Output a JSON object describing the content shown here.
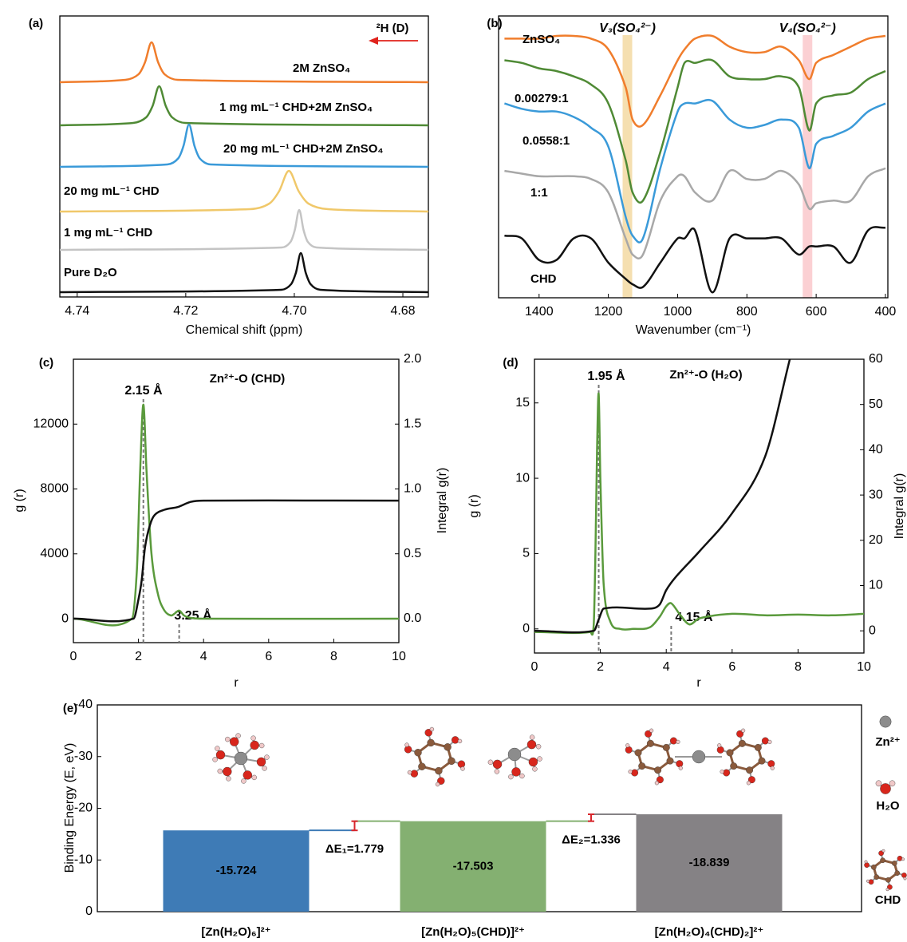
{
  "chart_data": [
    {
      "type": "line",
      "label": "(a)",
      "xlabel": "Chemical shift (ppm)",
      "xlim": [
        4.7432,
        4.6753
      ],
      "xticks": [
        4.74,
        4.72,
        {
          "value": 4.7,
          "label": "4.70"
        },
        4.68
      ],
      "annotation": "²H (D)",
      "annotation_color": "#e0231c",
      "series": [
        {
          "name": "2M ZnSO₄",
          "color": "#f07d2c",
          "x": [
            4.7432,
            4.7311,
            4.7287,
            4.7275,
            4.7263,
            4.7251,
            4.7239,
            4.7215,
            4.6753
          ],
          "values": [
            0,
            0.06,
            0.2,
            0.5,
            1.0,
            0.5,
            0.2,
            0.06,
            0
          ]
        },
        {
          "name": "1 mg mL⁻¹ CHD+2M ZnSO₄",
          "color": "#4f8a35",
          "x": [
            4.7432,
            4.7297,
            4.7273,
            4.7261,
            4.7249,
            4.7237,
            4.7225,
            4.7201,
            4.6753
          ],
          "values": [
            0,
            0.06,
            0.2,
            0.49,
            0.98,
            0.49,
            0.2,
            0.06,
            0
          ]
        },
        {
          "name": "20 mg mL⁻¹ CHD+2M ZnSO₄",
          "color": "#3a9ad9",
          "x": [
            4.7432,
            4.7234,
            4.7214,
            4.7204,
            4.7194,
            4.7184,
            4.7174,
            4.7154,
            4.6753
          ],
          "values": [
            0,
            0.06,
            0.21,
            0.53,
            1.06,
            0.53,
            0.21,
            0.06,
            0
          ]
        },
        {
          "name": "20 mg mL⁻¹ CHD",
          "color": "#f0c86a",
          "x": [
            4.7432,
            4.7082,
            4.7046,
            4.7028,
            4.701,
            4.6992,
            4.6974,
            4.6938,
            4.6753
          ],
          "values": [
            0,
            0.06,
            0.2,
            0.51,
            1.02,
            0.51,
            0.2,
            0.06,
            0
          ]
        },
        {
          "name": "1 mg mL⁻¹ CHD",
          "color": "#c4c4c4",
          "x": [
            4.7432,
            4.7023,
            4.7007,
            4.6999,
            4.6991,
            4.6983,
            4.6975,
            4.6959,
            4.6753
          ],
          "values": [
            0,
            0.06,
            0.2,
            0.5,
            1.0,
            0.5,
            0.2,
            0.06,
            0
          ]
        },
        {
          "name": "Pure D₂O",
          "color": "#111111",
          "x": [
            4.7432,
            4.7024,
            4.7006,
            4.6997,
            4.6988,
            4.6979,
            4.697,
            4.6952,
            4.6753
          ],
          "values": [
            0,
            0.06,
            0.2,
            0.49,
            0.98,
            0.49,
            0.2,
            0.06,
            0
          ]
        }
      ]
    },
    {
      "type": "line",
      "label": "(b)",
      "xlabel": "Wavenumber (cm⁻¹)",
      "xlim": [
        1517,
        393
      ],
      "ylim": [
        0,
        104.4
      ],
      "xticks": [
        1400,
        1200,
        1000,
        800,
        600,
        400
      ],
      "x": [
        1500,
        1450,
        1400,
        1350,
        1300,
        1250,
        1200,
        1150,
        1130,
        1100,
        1050,
        1000,
        980,
        950,
        900,
        850,
        800,
        750,
        700,
        650,
        620,
        600,
        550,
        500,
        450,
        400
      ],
      "series": [
        {
          "name": "ZnSO₄",
          "color": "#f07d2c",
          "values": [
            96,
            96,
            96,
            97,
            97,
            96,
            92,
            78,
            66,
            64,
            75,
            88,
            92,
            96,
            97,
            93,
            91,
            91,
            93,
            88,
            81,
            87,
            90,
            93,
            96,
            97
          ]
        },
        {
          "name": "0.00279:1",
          "color": "#4f8a35",
          "values": [
            88,
            87,
            85,
            84,
            82,
            79,
            72,
            51,
            39,
            36,
            54,
            78,
            87,
            87,
            88,
            82,
            81,
            81,
            82,
            78,
            62,
            72,
            75,
            76,
            81,
            84
          ]
        },
        {
          "name": "0.0558:1",
          "color": "#3a9ad9",
          "values": [
            72,
            70,
            69,
            69,
            67,
            63,
            56,
            30,
            23,
            22,
            48,
            69,
            72,
            72,
            73,
            66,
            63,
            64,
            66,
            63,
            48,
            57,
            60,
            63,
            69,
            72
          ]
        },
        {
          "name": "1:1",
          "color": "#a8a8a8",
          "values": [
            47,
            46,
            45,
            45,
            45,
            44,
            39,
            22,
            16,
            16,
            36,
            45,
            45,
            39,
            36,
            47,
            44,
            44,
            47,
            42,
            33,
            35,
            36,
            36,
            45,
            48
          ]
        },
        {
          "name": "CHD",
          "color": "#111111",
          "values": [
            23,
            22,
            14,
            14,
            22,
            22,
            13,
            7,
            5,
            4,
            13,
            22,
            22,
            25,
            2,
            22,
            22,
            22,
            22,
            16,
            19,
            19,
            19,
            13,
            25,
            26
          ]
        }
      ],
      "annotations": [
        {
          "text": "V₃(SO₄²⁻)",
          "x": 1145,
          "color": "#8b5a2b",
          "band_color": "#f5dfb0"
        },
        {
          "text": "V₄(SO₄²⁻)",
          "x": 625,
          "color": "#c0282d",
          "band_color": "#fbd0d3"
        }
      ]
    },
    {
      "type": "line",
      "label": "(c)",
      "title": "Zn²⁺-O (CHD)",
      "xlabel": "r",
      "ylabel": "g (r)",
      "ylabel_color": "#5a9a3c",
      "y2label": "Integral g(r)",
      "xlim": [
        0,
        10
      ],
      "xticks": [
        0,
        2,
        4,
        6,
        8,
        10
      ],
      "ylim": [
        -1475,
        16000
      ],
      "yticks": [
        0,
        4000,
        8000,
        12000
      ],
      "y2lim": [
        -0.185,
        2.0
      ],
      "y2ticks": [
        {
          "value": 0,
          "label": "0.0"
        },
        0.5,
        {
          "value": 1,
          "label": "1.0"
        },
        1.5,
        {
          "value": 2,
          "label": "2.0"
        }
      ],
      "series": [
        {
          "color": "#5a9a3c",
          "x": [
            0,
            1.8,
            1.95,
            2.05,
            2.15,
            2.25,
            2.4,
            2.6,
            2.8,
            3.0,
            3.1,
            3.25,
            3.4,
            3.6,
            4,
            10
          ],
          "values": [
            0,
            0,
            3000,
            9000,
            13200,
            9000,
            4000,
            1500,
            500,
            200,
            300,
            500,
            200,
            50,
            0,
            0
          ]
        },
        {
          "color": "#111111",
          "axis": "y2",
          "x": [
            0,
            1.85,
            2.0,
            2.1,
            2.2,
            2.35,
            2.5,
            2.8,
            3.2,
            3.6,
            4,
            10
          ],
          "values": [
            0,
            0,
            0.15,
            0.3,
            0.55,
            0.72,
            0.8,
            0.84,
            0.86,
            0.9,
            0.91,
            0.91
          ]
        }
      ],
      "annotations": [
        {
          "text": "2.15 Å",
          "x": 2.15,
          "color": "#8c8c8c"
        },
        {
          "text": "3.25 Å",
          "x": 3.25,
          "color": "#8c8c8c"
        }
      ]
    },
    {
      "type": "line",
      "label": "(d)",
      "title": "Zn²⁺-O (H₂O)",
      "xlabel": "r",
      "ylabel": "g (r)",
      "ylabel_color": "#5a9a3c",
      "ytick_color": "#5a9a3c",
      "y2label": "Integral g(r)",
      "xlim": [
        0,
        10
      ],
      "xticks": [
        0,
        2,
        4,
        6,
        8,
        10
      ],
      "ylim": [
        -1.6,
        17.9
      ],
      "yticks": [
        0,
        5,
        10,
        15
      ],
      "y2lim": [
        -4.9,
        60
      ],
      "y2ticks": [
        0,
        10,
        20,
        30,
        40,
        50,
        60
      ],
      "series": [
        {
          "color": "#5a9a3c",
          "x": [
            0,
            1.7,
            1.8,
            1.85,
            1.9,
            1.95,
            2.0,
            2.1,
            2.3,
            2.6,
            3.0,
            3.5,
            3.8,
            4.0,
            4.15,
            4.4,
            4.7,
            5.0,
            6,
            7,
            8,
            9,
            10
          ],
          "values": [
            -0.2,
            -0.2,
            0.3,
            5,
            12,
            15.6,
            10,
            3,
            0.5,
            0,
            0,
            0.1,
            0.8,
            1.5,
            1.7,
            1.0,
            0.3,
            0.7,
            1.0,
            0.9,
            0.95,
            0.9,
            1.0
          ]
        },
        {
          "color": "#111111",
          "axis": "y2",
          "x": [
            0,
            1.8,
            1.95,
            2.1,
            3.5,
            3.8,
            4.0,
            4.3,
            5,
            6,
            7,
            7.75
          ],
          "values": [
            0,
            0,
            2.5,
            4.9,
            4.9,
            5.8,
            9,
            12,
            17.5,
            26,
            38.5,
            60
          ]
        }
      ],
      "annotations": [
        {
          "text": "1.95 Å",
          "x": 1.95,
          "color": "#8c8c8c"
        },
        {
          "text": "4.15 Å",
          "x": 4.15,
          "color": "#8c8c8c"
        }
      ]
    },
    {
      "type": "bar",
      "label": "(e)",
      "ylabel": "Binding Energy (E, eV)",
      "categories": [
        "[Zn(H₂O)₆]²⁺",
        "[Zn(H₂O)₅(CHD)]²⁺",
        "[Zn(H₂O)₄(CHD)₂]²⁺"
      ],
      "values": [
        -15.724,
        -17.503,
        -18.839
      ],
      "colors": [
        "#3e7bb6",
        "#84b071",
        "#858285"
      ],
      "ylim": [
        0,
        -40
      ],
      "yticks": [
        -40,
        -30,
        -20,
        -10,
        0
      ],
      "annotations": [
        "ΔE₁=1.779",
        "ΔE₂=1.336"
      ],
      "annotation_color": "#d8262c",
      "legend_items": [
        "Zn²⁺",
        "H₂O",
        "CHD"
      ]
    }
  ]
}
